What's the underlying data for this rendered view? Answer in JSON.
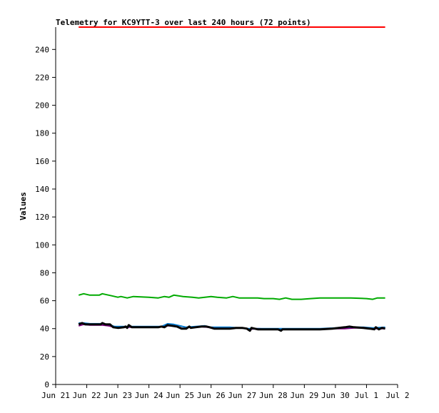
{
  "chart_data": {
    "type": "line",
    "title": "Telemetry for KC9YTT-3 over last 240 hours (72 points)",
    "ylabel": "Values",
    "xlabel": "",
    "ylim": [
      0,
      256
    ],
    "yticks": [
      0,
      20,
      40,
      60,
      80,
      100,
      120,
      140,
      160,
      180,
      200,
      220,
      240
    ],
    "xlim": [
      0,
      11
    ],
    "xticks": [
      {
        "x": 0,
        "label": "Jun 21"
      },
      {
        "x": 1,
        "label": "Jun 22"
      },
      {
        "x": 2,
        "label": "Jun 23"
      },
      {
        "x": 3,
        "label": "Jun 24"
      },
      {
        "x": 4,
        "label": "Jun 25"
      },
      {
        "x": 5,
        "label": "Jun 26"
      },
      {
        "x": 6,
        "label": "Jun 27"
      },
      {
        "x": 7,
        "label": "Jun 28"
      },
      {
        "x": 8,
        "label": "Jun 29"
      },
      {
        "x": 9,
        "label": "Jun 30"
      },
      {
        "x": 10,
        "label": "Jul 1"
      },
      {
        "x": 11,
        "label": "Jul 2"
      }
    ],
    "grid": false,
    "series": [
      {
        "color": "#ff0000",
        "width": 2,
        "points": [
          [
            0.74,
            256
          ],
          [
            10.6,
            256
          ]
        ]
      },
      {
        "color": "#00aa00",
        "width": 2,
        "points": [
          [
            0.74,
            64
          ],
          [
            0.9,
            65
          ],
          [
            1.1,
            64
          ],
          [
            1.4,
            64
          ],
          [
            1.5,
            65
          ],
          [
            1.8,
            63.5
          ],
          [
            2.0,
            62.5
          ],
          [
            2.1,
            63
          ],
          [
            2.3,
            62
          ],
          [
            2.5,
            63
          ],
          [
            3.0,
            62.5
          ],
          [
            3.3,
            62
          ],
          [
            3.5,
            63
          ],
          [
            3.65,
            62.5
          ],
          [
            3.8,
            64
          ],
          [
            4.1,
            63
          ],
          [
            4.4,
            62.5
          ],
          [
            4.6,
            62
          ],
          [
            5.0,
            63
          ],
          [
            5.2,
            62.5
          ],
          [
            5.5,
            62
          ],
          [
            5.7,
            63
          ],
          [
            5.9,
            62
          ],
          [
            6.5,
            62
          ],
          [
            6.7,
            61.5
          ],
          [
            7.0,
            61.5
          ],
          [
            7.2,
            61
          ],
          [
            7.4,
            62
          ],
          [
            7.6,
            61
          ],
          [
            7.9,
            61
          ],
          [
            8.2,
            61.5
          ],
          [
            8.5,
            62
          ],
          [
            9.5,
            62
          ],
          [
            10.0,
            61.5
          ],
          [
            10.2,
            61
          ],
          [
            10.35,
            62
          ],
          [
            10.6,
            62
          ]
        ]
      },
      {
        "color": "#800080",
        "width": 2,
        "points": [
          [
            0.74,
            42
          ],
          [
            0.9,
            43
          ],
          [
            1.1,
            42.5
          ],
          [
            1.5,
            42.5
          ],
          [
            1.7,
            42
          ],
          [
            1.9,
            41
          ],
          [
            2.3,
            41
          ],
          [
            2.5,
            41
          ],
          [
            3.0,
            41
          ],
          [
            3.3,
            41
          ],
          [
            3.5,
            42
          ],
          [
            3.7,
            42
          ],
          [
            3.9,
            41.5
          ],
          [
            4.1,
            40
          ],
          [
            4.3,
            41
          ],
          [
            4.6,
            41.5
          ],
          [
            4.9,
            41
          ],
          [
            5.1,
            40
          ],
          [
            5.5,
            40
          ],
          [
            5.8,
            40.5
          ],
          [
            6.0,
            40.5
          ],
          [
            6.2,
            39.5
          ],
          [
            6.5,
            40
          ],
          [
            7.0,
            39.5
          ],
          [
            7.5,
            39.5
          ],
          [
            8.0,
            39.5
          ],
          [
            8.5,
            39.5
          ],
          [
            9.0,
            40
          ],
          [
            9.3,
            40
          ],
          [
            9.6,
            40.5
          ],
          [
            9.9,
            40.5
          ],
          [
            10.2,
            40
          ],
          [
            10.6,
            40
          ]
        ]
      },
      {
        "color": "#0077cc",
        "width": 2,
        "points": [
          [
            0.74,
            44
          ],
          [
            0.9,
            44
          ],
          [
            1.1,
            43.5
          ],
          [
            1.5,
            43.5
          ],
          [
            1.7,
            43
          ],
          [
            1.9,
            41.5
          ],
          [
            2.3,
            41.5
          ],
          [
            3.0,
            41.5
          ],
          [
            3.4,
            41.5
          ],
          [
            3.6,
            43.5
          ],
          [
            3.8,
            43
          ],
          [
            4.0,
            42
          ],
          [
            4.2,
            41
          ],
          [
            4.5,
            41.5
          ],
          [
            4.8,
            42
          ],
          [
            5.0,
            41
          ],
          [
            5.3,
            41
          ],
          [
            5.6,
            41
          ],
          [
            5.9,
            40.5
          ],
          [
            6.2,
            40
          ],
          [
            6.5,
            40
          ],
          [
            7.0,
            40
          ],
          [
            7.5,
            40
          ],
          [
            8.0,
            40
          ],
          [
            8.5,
            40
          ],
          [
            9.0,
            40.5
          ],
          [
            9.3,
            41
          ],
          [
            9.6,
            41
          ],
          [
            9.9,
            41
          ],
          [
            10.2,
            40.5
          ],
          [
            10.6,
            41
          ]
        ]
      },
      {
        "color": "#000000",
        "width": 3,
        "points": [
          [
            0.74,
            43
          ],
          [
            0.85,
            44
          ],
          [
            0.95,
            43
          ],
          [
            1.2,
            43
          ],
          [
            1.45,
            43
          ],
          [
            1.5,
            44
          ],
          [
            1.6,
            43
          ],
          [
            1.75,
            43
          ],
          [
            1.85,
            41
          ],
          [
            2.0,
            40.5
          ],
          [
            2.2,
            41
          ],
          [
            2.25,
            41.5
          ],
          [
            2.3,
            40.5
          ],
          [
            2.35,
            42.5
          ],
          [
            2.45,
            41
          ],
          [
            2.6,
            41
          ],
          [
            3.0,
            41
          ],
          [
            3.3,
            41
          ],
          [
            3.4,
            41.5
          ],
          [
            3.5,
            41
          ],
          [
            3.6,
            42.5
          ],
          [
            3.75,
            42
          ],
          [
            3.9,
            41.5
          ],
          [
            4.05,
            40
          ],
          [
            4.2,
            40
          ],
          [
            4.3,
            41.5
          ],
          [
            4.35,
            40.5
          ],
          [
            4.5,
            41
          ],
          [
            4.7,
            41.5
          ],
          [
            4.85,
            41.5
          ],
          [
            4.95,
            41
          ],
          [
            5.1,
            40
          ],
          [
            5.3,
            40
          ],
          [
            5.45,
            40
          ],
          [
            5.6,
            40
          ],
          [
            5.8,
            40.5
          ],
          [
            6.0,
            40.5
          ],
          [
            6.15,
            40
          ],
          [
            6.25,
            38.5
          ],
          [
            6.3,
            40.5
          ],
          [
            6.5,
            39.5
          ],
          [
            6.9,
            39.5
          ],
          [
            7.15,
            39.5
          ],
          [
            7.25,
            38.5
          ],
          [
            7.3,
            39.5
          ],
          [
            7.6,
            39.5
          ],
          [
            8.0,
            39.5
          ],
          [
            8.5,
            39.5
          ],
          [
            8.9,
            40
          ],
          [
            9.1,
            40.5
          ],
          [
            9.3,
            41
          ],
          [
            9.45,
            41.5
          ],
          [
            9.6,
            41
          ],
          [
            9.9,
            40.5
          ],
          [
            10.1,
            40
          ],
          [
            10.25,
            39.5
          ],
          [
            10.3,
            41
          ],
          [
            10.4,
            39.5
          ],
          [
            10.5,
            40.5
          ],
          [
            10.6,
            40
          ]
        ]
      }
    ]
  }
}
